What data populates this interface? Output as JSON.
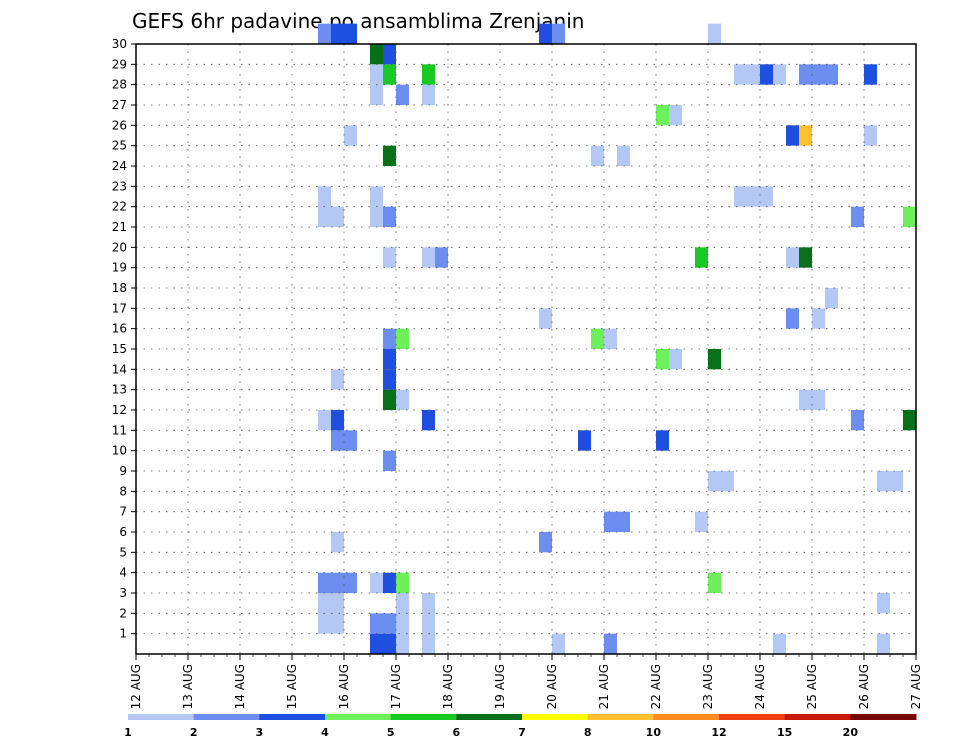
{
  "chart_data": {
    "type": "heatmap",
    "title": "GEFS 6hr padavine po ansamblima Zrenjanin",
    "xlabel": "",
    "ylabel": "",
    "x_tick_labels": [
      "12 AUG",
      "13 AUG",
      "14 AUG",
      "15 AUG",
      "16 AUG",
      "17 AUG",
      "18 AUG",
      "19 AUG",
      "20 AUG",
      "21 AUG",
      "22 AUG",
      "23 AUG",
      "24 AUG",
      "25 AUG",
      "26 AUG",
      "27 AUG"
    ],
    "y_tick_labels": [
      "1",
      "2",
      "3",
      "4",
      "5",
      "6",
      "7",
      "8",
      "9",
      "10",
      "11",
      "12",
      "13",
      "14",
      "15",
      "16",
      "17",
      "18",
      "19",
      "20",
      "21",
      "22",
      "23",
      "24",
      "25",
      "26",
      "27",
      "28",
      "29",
      "30"
    ],
    "x_range_days": [
      0,
      15
    ],
    "y_range": [
      0,
      30
    ],
    "grid": true,
    "colorbar": {
      "labels": [
        "1",
        "2",
        "3",
        "4",
        "5",
        "6",
        "7",
        "8",
        "10",
        "12",
        "15",
        "20"
      ],
      "colors": [
        "#b4c8f5",
        "#6c8ef0",
        "#1f4fe0",
        "#6ef05a",
        "#18c824",
        "#087018",
        "#ffff00",
        "#ffc030",
        "#ff8c1e",
        "#f04010",
        "#c81808",
        "#780808"
      ]
    },
    "x_unit": "days since 12 AUG 00Z",
    "cells": [
      [
        3.5,
        1,
        0
      ],
      [
        3.5,
        2,
        0
      ],
      [
        3.5,
        3,
        1
      ],
      [
        3.5,
        11,
        0
      ],
      [
        3.5,
        21,
        0
      ],
      [
        3.5,
        22,
        0
      ],
      [
        3.5,
        30,
        1
      ],
      [
        3.75,
        1,
        0
      ],
      [
        3.75,
        2,
        0
      ],
      [
        3.75,
        3,
        1
      ],
      [
        3.75,
        5,
        0
      ],
      [
        3.75,
        10,
        1
      ],
      [
        3.75,
        11,
        2
      ],
      [
        3.75,
        13,
        0
      ],
      [
        3.75,
        21,
        0
      ],
      [
        3.75,
        30,
        2
      ],
      [
        4.0,
        3,
        1
      ],
      [
        4.0,
        10,
        1
      ],
      [
        4.0,
        25,
        0
      ],
      [
        4.0,
        30,
        2
      ],
      [
        4.5,
        0,
        2
      ],
      [
        4.5,
        1,
        1
      ],
      [
        4.5,
        3,
        0
      ],
      [
        4.5,
        21,
        0
      ],
      [
        4.5,
        22,
        0
      ],
      [
        4.5,
        27,
        0
      ],
      [
        4.5,
        28,
        0
      ],
      [
        4.5,
        29,
        5
      ],
      [
        4.75,
        0,
        2
      ],
      [
        4.75,
        1,
        1
      ],
      [
        4.75,
        3,
        2
      ],
      [
        4.75,
        9,
        1
      ],
      [
        4.75,
        12,
        5
      ],
      [
        4.75,
        13,
        2
      ],
      [
        4.75,
        14,
        2
      ],
      [
        4.75,
        15,
        1
      ],
      [
        4.75,
        19,
        0
      ],
      [
        4.75,
        21,
        1
      ],
      [
        4.75,
        24,
        5
      ],
      [
        4.75,
        28,
        4
      ],
      [
        4.75,
        29,
        2
      ],
      [
        5.0,
        0,
        0
      ],
      [
        5.0,
        1,
        0
      ],
      [
        5.0,
        2,
        0
      ],
      [
        5.0,
        3,
        3
      ],
      [
        5.0,
        12,
        0
      ],
      [
        5.0,
        15,
        3
      ],
      [
        5.0,
        27,
        1
      ],
      [
        5.5,
        0,
        0
      ],
      [
        5.5,
        1,
        0
      ],
      [
        5.5,
        2,
        0
      ],
      [
        5.5,
        11,
        2
      ],
      [
        5.5,
        19,
        0
      ],
      [
        5.5,
        27,
        0
      ],
      [
        5.5,
        28,
        4
      ],
      [
        5.75,
        19,
        1
      ],
      [
        7.75,
        5,
        1
      ],
      [
        7.75,
        16,
        0
      ],
      [
        7.75,
        30,
        2
      ],
      [
        8.0,
        0,
        0
      ],
      [
        8.0,
        30,
        1
      ],
      [
        8.5,
        10,
        2
      ],
      [
        8.75,
        15,
        3
      ],
      [
        8.75,
        24,
        0
      ],
      [
        9.0,
        0,
        1
      ],
      [
        9.0,
        6,
        1
      ],
      [
        9.0,
        15,
        0
      ],
      [
        9.25,
        6,
        1
      ],
      [
        9.25,
        24,
        0
      ],
      [
        10.0,
        10,
        2
      ],
      [
        10.0,
        14,
        3
      ],
      [
        10.0,
        26,
        3
      ],
      [
        10.25,
        14,
        0
      ],
      [
        10.25,
        26,
        0
      ],
      [
        10.75,
        6,
        0
      ],
      [
        10.75,
        19,
        4
      ],
      [
        11.0,
        3,
        3
      ],
      [
        11.0,
        8,
        0
      ],
      [
        11.0,
        14,
        5
      ],
      [
        11.0,
        30,
        0
      ],
      [
        11.25,
        8,
        0
      ],
      [
        11.5,
        22,
        0
      ],
      [
        11.5,
        28,
        0
      ],
      [
        11.75,
        22,
        0
      ],
      [
        11.75,
        28,
        0
      ],
      [
        12.0,
        22,
        0
      ],
      [
        12.0,
        28,
        2
      ],
      [
        12.25,
        0,
        0
      ],
      [
        12.25,
        28,
        0
      ],
      [
        12.5,
        16,
        1
      ],
      [
        12.5,
        19,
        0
      ],
      [
        12.5,
        25,
        2
      ],
      [
        12.75,
        12,
        0
      ],
      [
        12.75,
        19,
        5
      ],
      [
        12.75,
        25,
        7
      ],
      [
        12.75,
        28,
        1
      ],
      [
        13.0,
        12,
        0
      ],
      [
        13.0,
        16,
        0
      ],
      [
        13.0,
        28,
        1
      ],
      [
        13.25,
        17,
        0
      ],
      [
        13.25,
        28,
        1
      ],
      [
        13.75,
        11,
        1
      ],
      [
        13.75,
        21,
        1
      ],
      [
        14.0,
        25,
        0
      ],
      [
        14.0,
        28,
        2
      ],
      [
        14.25,
        0,
        0
      ],
      [
        14.25,
        2,
        0
      ],
      [
        14.25,
        8,
        0
      ],
      [
        14.5,
        8,
        0
      ],
      [
        14.75,
        11,
        5
      ],
      [
        14.75,
        21,
        3
      ]
    ]
  }
}
